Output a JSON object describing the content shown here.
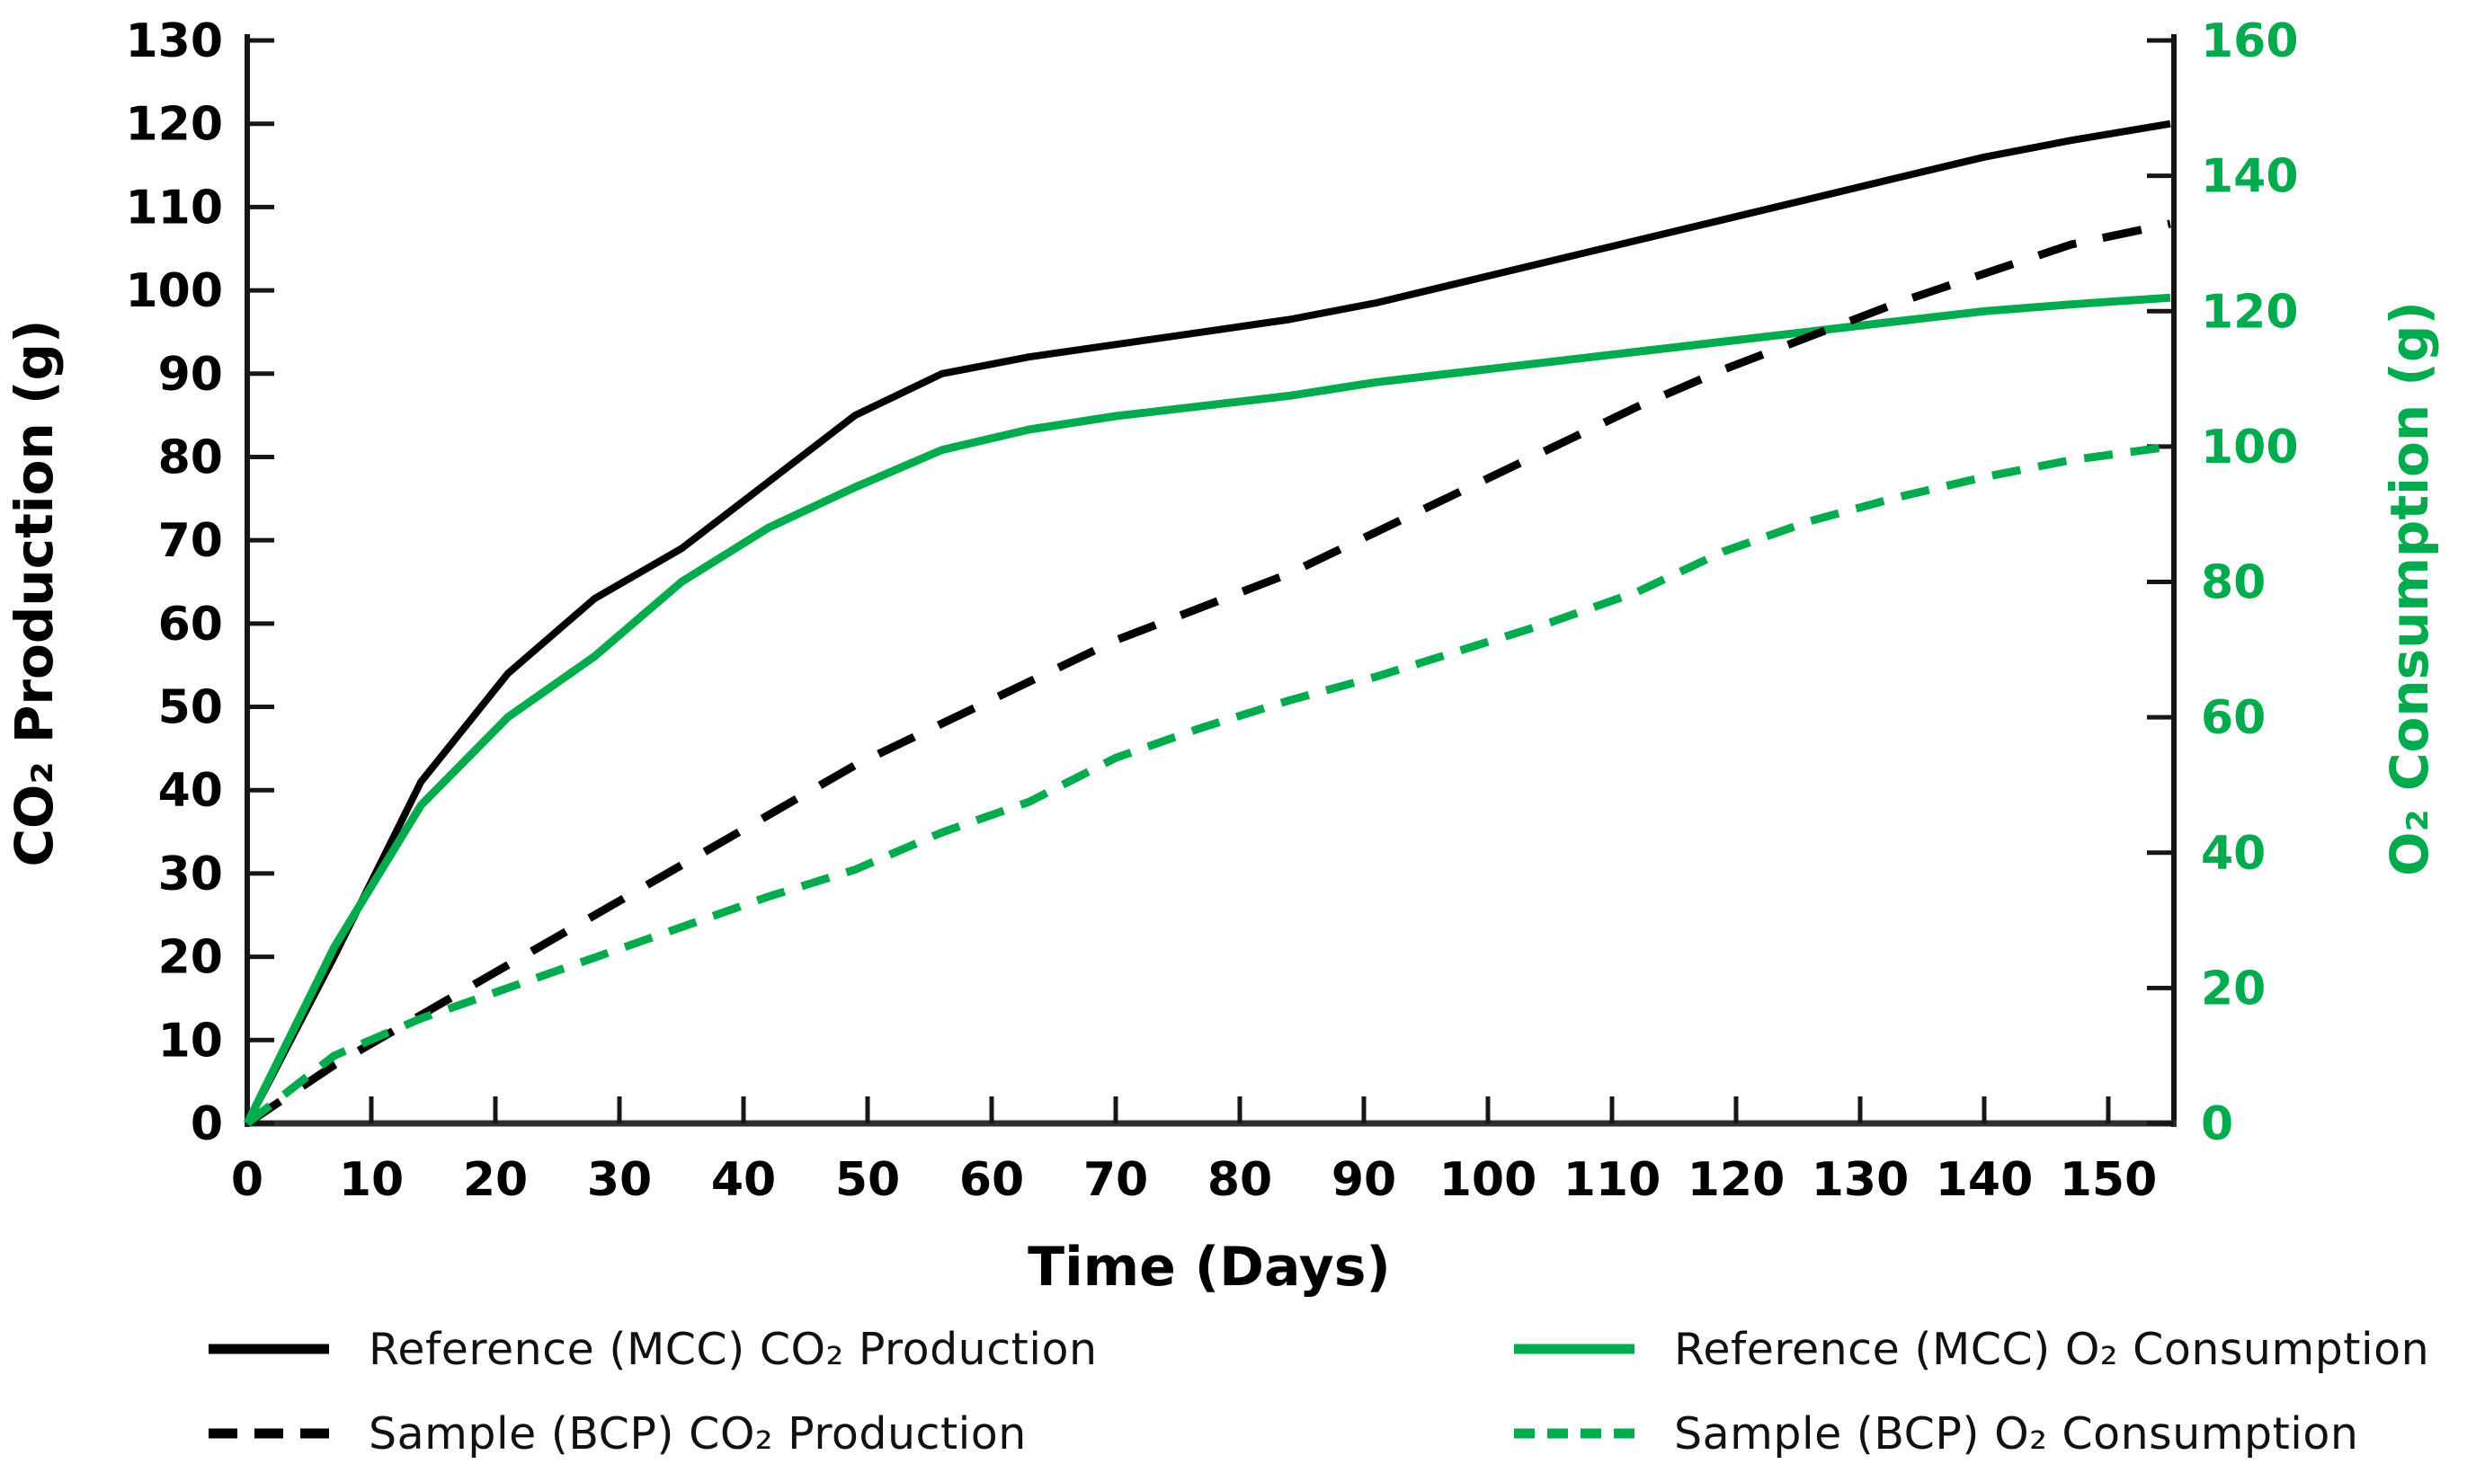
{
  "chart_data": {
    "type": "line",
    "title": "",
    "x": {
      "label": "Time (Days)",
      "range": [
        0,
        155
      ],
      "ticks": [
        0,
        10,
        20,
        30,
        40,
        50,
        60,
        70,
        80,
        90,
        100,
        110,
        120,
        130,
        140,
        150
      ]
    },
    "y_left": {
      "label": "CO₂ Production (g)",
      "range": [
        0,
        130
      ],
      "color": "#000000",
      "ticks": [
        0,
        10,
        20,
        30,
        40,
        50,
        60,
        70,
        80,
        90,
        100,
        110,
        120,
        130
      ]
    },
    "y_right": {
      "label": "O₂ Consumption (g)",
      "range": [
        0,
        160
      ],
      "color": "#00AB4E",
      "ticks": [
        0,
        20,
        40,
        60,
        80,
        100,
        120,
        140,
        160
      ]
    },
    "x_days": [
      0,
      7,
      14,
      21,
      28,
      35,
      42,
      49,
      56,
      63,
      70,
      77,
      84,
      91,
      98,
      105,
      112,
      119,
      126,
      133,
      140,
      147,
      155
    ],
    "series": [
      {
        "label": "Reference (MCC) CO₂ Production",
        "axis": "left",
        "color": "#000000",
        "style": "solid",
        "values": [
          0,
          20,
          41,
          54,
          63,
          69,
          77,
          85,
          90,
          92,
          93.5,
          95,
          96.5,
          98.5,
          101,
          103.5,
          106,
          108.5,
          111,
          113.5,
          116,
          118,
          120
        ]
      },
      {
        "label": "Reference (MCC) O₂ Consumption",
        "axis": "right",
        "color": "#00AB4E",
        "style": "solid",
        "values": [
          0,
          26,
          47,
          60,
          69,
          80,
          88,
          94,
          99.5,
          102.5,
          104.5,
          106,
          107.5,
          109.5,
          111,
          112.5,
          114,
          115.5,
          117,
          118.5,
          120,
          121,
          122
        ]
      },
      {
        "label": "Sample (BCP) CO₂ Production",
        "axis": "left",
        "color": "#000000",
        "style": "dashed",
        "values": [
          0,
          7,
          13,
          19,
          25,
          31,
          37,
          43,
          48,
          53,
          58,
          62,
          66,
          71,
          76,
          81,
          86,
          90.5,
          94.5,
          98.5,
          102,
          105.5,
          108
        ]
      },
      {
        "label": "Sample (BCP) O₂ Consumption",
        "axis": "right",
        "color": "#00AB4E",
        "style": "dashed",
        "values": [
          0,
          10,
          15.5,
          20,
          24.5,
          29,
          33.5,
          37.5,
          43,
          47.5,
          54,
          58.5,
          62.5,
          66,
          70,
          74,
          78.5,
          84.5,
          89,
          92.5,
          95.5,
          98,
          100
        ]
      }
    ],
    "legend": {
      "position": "bottom",
      "columns": 2
    },
    "grid": "off"
  }
}
